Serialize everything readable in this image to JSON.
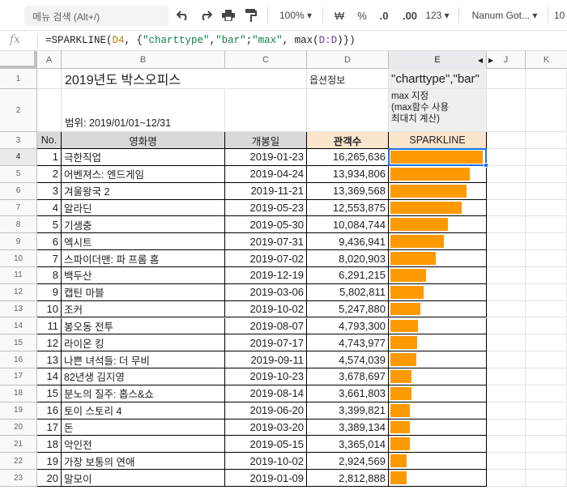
{
  "toolbar": {
    "search_placeholder": "메뉴 검색 (Alt+/)",
    "zoom": "100%",
    "currency": "₩",
    "percent": "%",
    "dec_decrease": ".0",
    "dec_increase": ".00",
    "number_format": "123",
    "font": "Nanum Got...",
    "font_size": "10"
  },
  "formula_bar": {
    "fx": "fx",
    "p1": "=SPARKLINE(",
    "ref": "D4",
    "p2": ", {",
    "s1": "\"charttype\"",
    "p3": ",",
    "s2": "\"bar\"",
    "p4": ";",
    "s3": "\"max\"",
    "p5": ", max(",
    "rng": "D:D",
    "p6": ")})"
  },
  "columns": [
    "A",
    "B",
    "C",
    "D",
    "E",
    "J",
    "K"
  ],
  "rows": [
    "1",
    "2",
    "3",
    "4",
    "5",
    "6",
    "7",
    "8",
    "9",
    "10",
    "11",
    "12",
    "13",
    "14",
    "15",
    "16",
    "17",
    "18",
    "19",
    "20",
    "21",
    "22",
    "23"
  ],
  "sheet": {
    "title": "2019년도 박스오피스",
    "range_label": "범위: 2019/01/01~12/31",
    "option_label": "옵션정보",
    "option_value": "\"charttype\",\"bar\"",
    "option_note_1": "max 지정",
    "option_note_2": "(max함수 사용",
    "option_note_3": "최대치 계산)",
    "headers": {
      "no": "No.",
      "title": "영화명",
      "release": "개봉일",
      "audience": "관객수",
      "sparkline": "SPARKLINE"
    }
  },
  "movies": [
    {
      "no": "1",
      "title": "극한직업",
      "release": "2019-01-23",
      "audience": "16,265,636",
      "value": 16265636
    },
    {
      "no": "2",
      "title": "어벤져스: 엔드게임",
      "release": "2019-04-24",
      "audience": "13,934,806",
      "value": 13934806
    },
    {
      "no": "3",
      "title": "겨울왕국 2",
      "release": "2019-11-21",
      "audience": "13,369,568",
      "value": 13369568
    },
    {
      "no": "4",
      "title": "알라딘",
      "release": "2019-05-23",
      "audience": "12,553,875",
      "value": 12553875
    },
    {
      "no": "5",
      "title": "기생충",
      "release": "2019-05-30",
      "audience": "10,084,744",
      "value": 10084744
    },
    {
      "no": "6",
      "title": "엑시트",
      "release": "2019-07-31",
      "audience": "9,436,941",
      "value": 9436941
    },
    {
      "no": "7",
      "title": "스파이더맨: 파 프롬 홈",
      "release": "2019-07-02",
      "audience": "8,020,903",
      "value": 8020903
    },
    {
      "no": "8",
      "title": "백두산",
      "release": "2019-12-19",
      "audience": "6,291,215",
      "value": 6291215
    },
    {
      "no": "9",
      "title": "캡틴 마블",
      "release": "2019-03-06",
      "audience": "5,802,811",
      "value": 5802811
    },
    {
      "no": "10",
      "title": "조커",
      "release": "2019-10-02",
      "audience": "5,247,880",
      "value": 5247880
    },
    {
      "no": "11",
      "title": "봉오동 전투",
      "release": "2019-08-07",
      "audience": "4,793,300",
      "value": 4793300
    },
    {
      "no": "12",
      "title": "라이온 킹",
      "release": "2019-07-17",
      "audience": "4,743,977",
      "value": 4743977
    },
    {
      "no": "13",
      "title": "나쁜 녀석들: 더 무비",
      "release": "2019-09-11",
      "audience": "4,574,039",
      "value": 4574039
    },
    {
      "no": "14",
      "title": "82년생 김지영",
      "release": "2019-10-23",
      "audience": "3,678,697",
      "value": 3678697
    },
    {
      "no": "15",
      "title": "분노의 질주: 홉스&쇼",
      "release": "2019-08-14",
      "audience": "3,661,803",
      "value": 3661803
    },
    {
      "no": "16",
      "title": "토이 스토리 4",
      "release": "2019-06-20",
      "audience": "3,399,821",
      "value": 3399821
    },
    {
      "no": "17",
      "title": "돈",
      "release": "2019-03-20",
      "audience": "3,389,134",
      "value": 3389134
    },
    {
      "no": "18",
      "title": "악인전",
      "release": "2019-05-15",
      "audience": "3,365,014",
      "value": 3365014
    },
    {
      "no": "19",
      "title": "가장 보통의 연애",
      "release": "2019-10-02",
      "audience": "2,924,569",
      "value": 2924569
    },
    {
      "no": "20",
      "title": "말모이",
      "release": "2019-01-09",
      "audience": "2,812,888",
      "value": 2812888
    }
  ],
  "sparkline_max": 16265636,
  "colors": {
    "bar": "#ff9900",
    "header_gray": "#d9d9d9",
    "header_orange": "#fce5cd",
    "selection": "#1a73e8"
  }
}
